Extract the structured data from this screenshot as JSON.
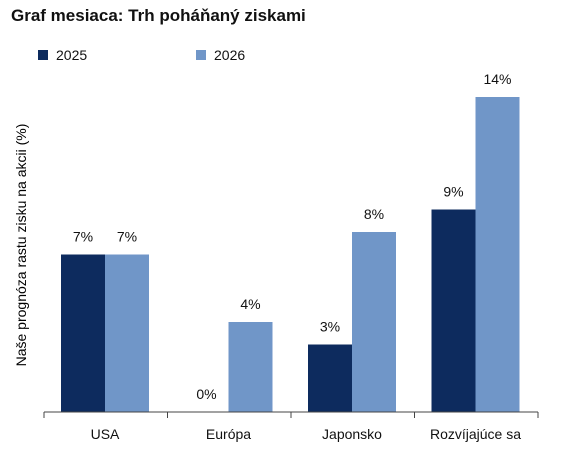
{
  "chart_data": {
    "type": "bar",
    "title": "Graf mesiaca: Trh poháňaný ziskami",
    "ylabel": "Naše prognóza rastu zisku na akcii (%)",
    "xlabel": "",
    "categories": [
      "USA",
      "Európa",
      "Japonsko",
      "Rozvíjajúce sa"
    ],
    "series": [
      {
        "name": "2025",
        "values": [
          7,
          0,
          3,
          9
        ],
        "labels": [
          "7%",
          "0%",
          "3%",
          "9%"
        ],
        "color": "#0d2b5e"
      },
      {
        "name": "2026",
        "values": [
          7,
          4,
          8,
          14
        ],
        "labels": [
          "7%",
          "4%",
          "8%",
          "14%"
        ],
        "color": "#7096c8"
      }
    ],
    "ylim": [
      0,
      14
    ],
    "grid": false,
    "legend_position": "top-left"
  }
}
